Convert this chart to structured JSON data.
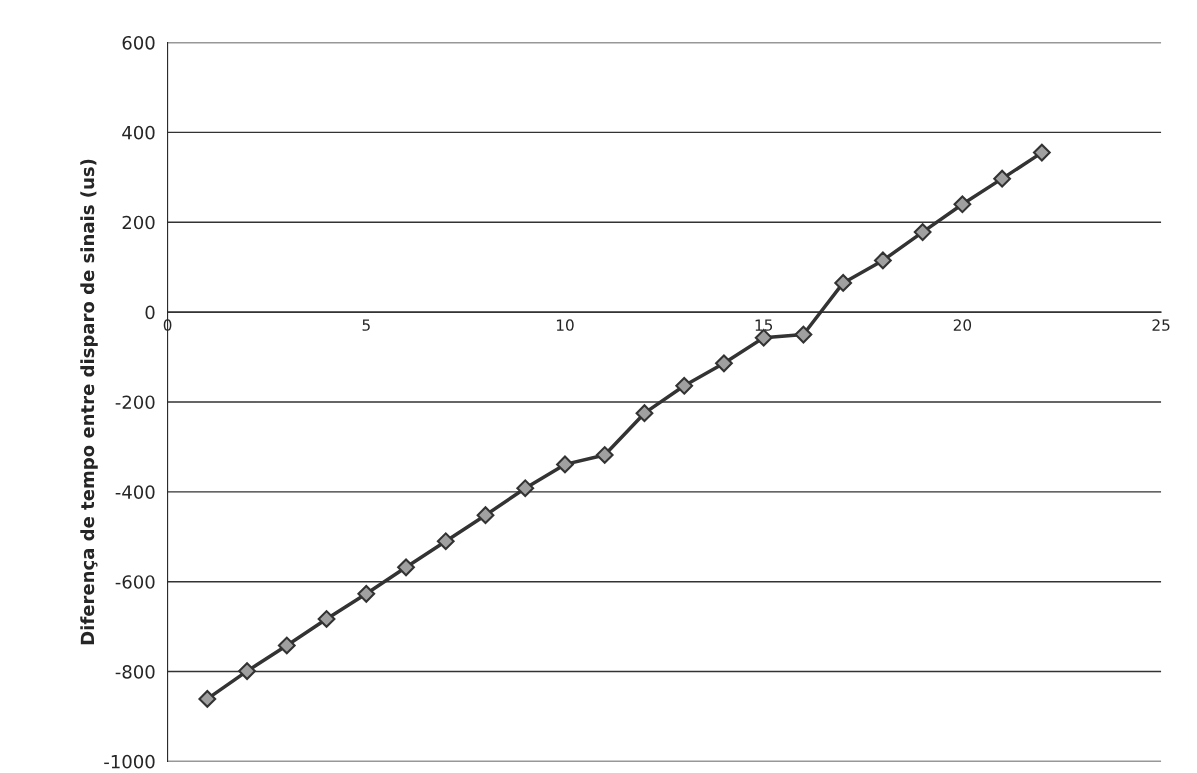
{
  "chart_data": {
    "type": "line",
    "ylabel": "Diferença de tempo entre disparo de sinais (us)",
    "x": [
      1,
      2,
      3,
      4,
      5,
      6,
      7,
      8,
      9,
      10,
      11,
      12,
      13,
      14,
      15,
      16,
      17,
      18,
      19,
      20,
      21,
      22
    ],
    "series": [
      {
        "color": "#333333",
        "values": [
          -861,
          -799,
          -742,
          -683,
          -627,
          -568,
          -510,
          -452,
          -392,
          -339,
          -318,
          -225,
          -164,
          -114,
          -57,
          -50,
          65,
          115,
          178,
          240,
          297,
          355
        ]
      }
    ],
    "xlim": [
      0,
      25
    ],
    "xticks": [
      0,
      5,
      10,
      15,
      20,
      25
    ],
    "ylim": [
      -1000,
      600
    ],
    "yticks": [
      -1000,
      -800,
      -600,
      -400,
      -200,
      0,
      200,
      400,
      600
    ],
    "grid": "y",
    "marker": "diamond",
    "line_style": "solid"
  }
}
